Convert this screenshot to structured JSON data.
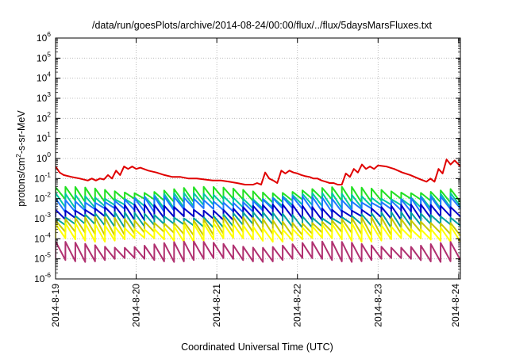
{
  "chart_data": {
    "type": "line",
    "title": "/data/run/goesPlots/archive/2014-08-24/00:00/flux/../flux/5daysMarsFluxes.txt",
    "xlabel": "Coordinated Universal Time (UTC)",
    "ylabel_main": "protons/cm",
    "ylabel_sup": "2",
    "ylabel_tail": "-s-sr-MeV",
    "y_scale": "log",
    "ylim": [
      1e-06,
      1000000.0
    ],
    "y_ticks": [
      {
        "exp": "-6",
        "value": 1e-06
      },
      {
        "exp": "-5",
        "value": 1e-05
      },
      {
        "exp": "-4",
        "value": 0.0001
      },
      {
        "exp": "-3",
        "value": 0.001
      },
      {
        "exp": "-2",
        "value": 0.01
      },
      {
        "exp": "-1",
        "value": 0.1
      },
      {
        "exp": "0",
        "value": 1
      },
      {
        "exp": "1",
        "value": 10
      },
      {
        "exp": "2",
        "value": 100
      },
      {
        "exp": "3",
        "value": 1000
      },
      {
        "exp": "4",
        "value": 10000
      },
      {
        "exp": "5",
        "value": 100000
      },
      {
        "exp": "6",
        "value": 1000000
      }
    ],
    "xlim": [
      "2014-08-19 00:00",
      "2014-08-24 00:30"
    ],
    "x_ticks": [
      "2014-8-19",
      "2014-8-20",
      "2014-8-21",
      "2014-8-22",
      "2014-8-23",
      "2014-8-24"
    ],
    "grid": true,
    "legend": "none",
    "series": [
      {
        "color": "#e00000",
        "baseline": 0.12,
        "sawtooth": false,
        "points": [
          [
            "2014-08-19 00:00",
            0.4
          ],
          [
            "2014-08-19 01:12",
            0.2
          ],
          [
            "2014-08-19 02:24",
            0.15
          ],
          [
            "2014-08-19 04:48",
            0.12
          ],
          [
            "2014-08-19 07:12",
            0.1
          ],
          [
            "2014-08-19 09:36",
            0.08
          ],
          [
            "2014-08-19 10:48",
            0.1
          ],
          [
            "2014-08-19 12:00",
            0.08
          ],
          [
            "2014-08-19 13:12",
            0.1
          ],
          [
            "2014-08-19 14:24",
            0.09
          ],
          [
            "2014-08-19 15:36",
            0.15
          ],
          [
            "2014-08-19 16:48",
            0.1
          ],
          [
            "2014-08-19 18:00",
            0.25
          ],
          [
            "2014-08-19 19:12",
            0.15
          ],
          [
            "2014-08-19 20:24",
            0.4
          ],
          [
            "2014-08-19 21:36",
            0.3
          ],
          [
            "2014-08-19 22:48",
            0.4
          ],
          [
            "2014-08-20 00:00",
            0.3
          ],
          [
            "2014-08-20 01:12",
            0.35
          ],
          [
            "2014-08-20 03:36",
            0.25
          ],
          [
            "2014-08-20 06:00",
            0.2
          ],
          [
            "2014-08-20 08:24",
            0.15
          ],
          [
            "2014-08-20 10:48",
            0.12
          ],
          [
            "2014-08-20 13:12",
            0.12
          ],
          [
            "2014-08-20 15:36",
            0.1
          ],
          [
            "2014-08-20 18:00",
            0.1
          ],
          [
            "2014-08-20 20:24",
            0.09
          ],
          [
            "2014-08-20 22:48",
            0.08
          ],
          [
            "2014-08-21 01:12",
            0.08
          ],
          [
            "2014-08-21 03:36",
            0.07
          ],
          [
            "2014-08-21 06:00",
            0.06
          ],
          [
            "2014-08-21 08:24",
            0.05
          ],
          [
            "2014-08-21 10:48",
            0.05
          ],
          [
            "2014-08-21 12:00",
            0.06
          ],
          [
            "2014-08-21 13:12",
            0.05
          ],
          [
            "2014-08-21 14:24",
            0.2
          ],
          [
            "2014-08-21 15:36",
            0.1
          ],
          [
            "2014-08-21 16:48",
            0.08
          ],
          [
            "2014-08-21 18:00",
            0.06
          ],
          [
            "2014-08-21 19:12",
            0.25
          ],
          [
            "2014-08-21 20:24",
            0.18
          ],
          [
            "2014-08-21 21:36",
            0.25
          ],
          [
            "2014-08-21 22:48",
            0.2
          ],
          [
            "2014-08-22 00:00",
            0.18
          ],
          [
            "2014-08-22 01:12",
            0.15
          ],
          [
            "2014-08-22 02:24",
            0.13
          ],
          [
            "2014-08-22 03:36",
            0.12
          ],
          [
            "2014-08-22 04:48",
            0.1
          ],
          [
            "2014-08-22 06:00",
            0.1
          ],
          [
            "2014-08-22 07:12",
            0.08
          ],
          [
            "2014-08-22 08:24",
            0.07
          ],
          [
            "2014-08-22 09:36",
            0.06
          ],
          [
            "2014-08-22 10:48",
            0.06
          ],
          [
            "2014-08-22 12:00",
            0.05
          ],
          [
            "2014-08-22 13:12",
            0.05
          ],
          [
            "2014-08-22 14:24",
            0.18
          ],
          [
            "2014-08-22 15:36",
            0.12
          ],
          [
            "2014-08-22 16:48",
            0.3
          ],
          [
            "2014-08-22 18:00",
            0.2
          ],
          [
            "2014-08-22 19:12",
            0.5
          ],
          [
            "2014-08-22 20:24",
            0.3
          ],
          [
            "2014-08-22 21:36",
            0.4
          ],
          [
            "2014-08-22 22:48",
            0.3
          ],
          [
            "2014-08-23 00:00",
            0.45
          ],
          [
            "2014-08-23 02:24",
            0.4
          ],
          [
            "2014-08-23 04:48",
            0.3
          ],
          [
            "2014-08-23 07:12",
            0.2
          ],
          [
            "2014-08-23 09:36",
            0.15
          ],
          [
            "2014-08-23 12:00",
            0.1
          ],
          [
            "2014-08-23 14:24",
            0.07
          ],
          [
            "2014-08-23 15:36",
            0.1
          ],
          [
            "2014-08-23 16:48",
            0.07
          ],
          [
            "2014-08-23 18:00",
            0.3
          ],
          [
            "2014-08-23 19:12",
            0.18
          ],
          [
            "2014-08-23 20:24",
            0.9
          ],
          [
            "2014-08-23 21:36",
            0.5
          ],
          [
            "2014-08-23 22:48",
            0.8
          ],
          [
            "2014-08-24 00:00",
            0.5
          ],
          [
            "2014-08-24 00:30",
            0.4
          ]
        ]
      },
      {
        "color": "#22e022",
        "baseline": 0.009,
        "sawtooth": true
      },
      {
        "color": "#00c8a0",
        "baseline": 0.0045,
        "sawtooth": true
      },
      {
        "color": "#1e78ff",
        "baseline": 0.003,
        "sawtooth": true
      },
      {
        "color": "#0000c8",
        "baseline": 0.0012,
        "sawtooth": true
      },
      {
        "color": "#00a0a0",
        "baseline": 0.0005,
        "sawtooth": true
      },
      {
        "color": "#c8c800",
        "baseline": 0.0002,
        "sawtooth": true
      },
      {
        "color": "#ffff00",
        "baseline": 0.0001,
        "sawtooth": true
      },
      {
        "color": "#b03070",
        "baseline": 1e-05,
        "sawtooth": true
      }
    ]
  }
}
